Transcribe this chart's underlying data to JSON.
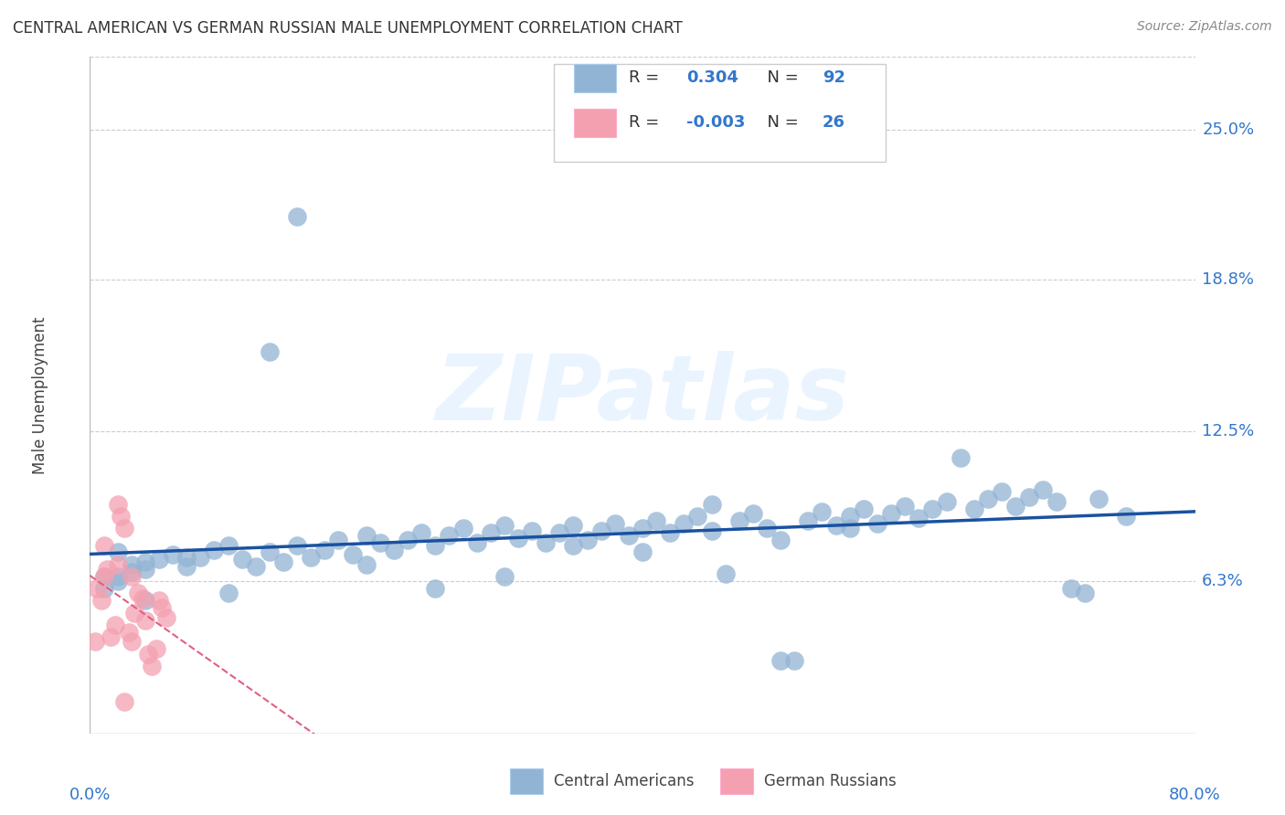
{
  "title": "CENTRAL AMERICAN VS GERMAN RUSSIAN MALE UNEMPLOYMENT CORRELATION CHART",
  "source": "Source: ZipAtlas.com",
  "ylabel": "Male Unemployment",
  "xmin": 0.0,
  "xmax": 0.8,
  "ymin": 0.0,
  "ymax": 0.28,
  "yticks": [
    0.063,
    0.125,
    0.188,
    0.25
  ],
  "ytick_labels": [
    "6.3%",
    "12.5%",
    "18.8%",
    "25.0%"
  ],
  "watermark": "ZIPatlas",
  "legend_r_blue": "0.304",
  "legend_n_blue": "92",
  "legend_r_pink": "-0.003",
  "legend_n_pink": "26",
  "blue_color": "#92b4d4",
  "pink_color": "#f4a0b0",
  "blue_line_color": "#1a52a0",
  "pink_line_color": "#e06080",
  "grid_color": "#cccccc",
  "background_color": "#ffffff",
  "blue_scatter_x": [
    0.02,
    0.03,
    0.01,
    0.04,
    0.05,
    0.02,
    0.03,
    0.04,
    0.06,
    0.07,
    0.08,
    0.09,
    0.1,
    0.11,
    0.12,
    0.13,
    0.14,
    0.15,
    0.16,
    0.17,
    0.18,
    0.19,
    0.2,
    0.21,
    0.22,
    0.23,
    0.24,
    0.25,
    0.26,
    0.27,
    0.28,
    0.29,
    0.3,
    0.31,
    0.32,
    0.33,
    0.34,
    0.35,
    0.36,
    0.37,
    0.38,
    0.39,
    0.4,
    0.41,
    0.42,
    0.43,
    0.44,
    0.45,
    0.46,
    0.47,
    0.48,
    0.49,
    0.5,
    0.51,
    0.52,
    0.53,
    0.54,
    0.55,
    0.56,
    0.57,
    0.58,
    0.59,
    0.6,
    0.61,
    0.62,
    0.63,
    0.64,
    0.65,
    0.66,
    0.67,
    0.68,
    0.69,
    0.7,
    0.71,
    0.72,
    0.73,
    0.01,
    0.02,
    0.04,
    0.07,
    0.1,
    0.13,
    0.15,
    0.2,
    0.25,
    0.3,
    0.35,
    0.4,
    0.45,
    0.5,
    0.55,
    0.75
  ],
  "blue_scatter_y": [
    0.075,
    0.07,
    0.065,
    0.068,
    0.072,
    0.063,
    0.067,
    0.071,
    0.074,
    0.069,
    0.073,
    0.076,
    0.078,
    0.072,
    0.069,
    0.075,
    0.071,
    0.078,
    0.073,
    0.076,
    0.08,
    0.074,
    0.082,
    0.079,
    0.076,
    0.08,
    0.083,
    0.078,
    0.082,
    0.085,
    0.079,
    0.083,
    0.086,
    0.081,
    0.084,
    0.079,
    0.083,
    0.086,
    0.08,
    0.084,
    0.087,
    0.082,
    0.085,
    0.088,
    0.083,
    0.087,
    0.09,
    0.084,
    0.066,
    0.088,
    0.091,
    0.085,
    0.03,
    0.03,
    0.088,
    0.092,
    0.086,
    0.09,
    0.093,
    0.087,
    0.091,
    0.094,
    0.089,
    0.093,
    0.096,
    0.114,
    0.093,
    0.097,
    0.1,
    0.094,
    0.098,
    0.101,
    0.096,
    0.06,
    0.058,
    0.097,
    0.06,
    0.065,
    0.055,
    0.073,
    0.058,
    0.158,
    0.214,
    0.07,
    0.06,
    0.065,
    0.078,
    0.075,
    0.095,
    0.08,
    0.085,
    0.09
  ],
  "pink_scatter_x": [
    0.005,
    0.008,
    0.01,
    0.012,
    0.015,
    0.018,
    0.02,
    0.022,
    0.025,
    0.028,
    0.03,
    0.032,
    0.035,
    0.038,
    0.04,
    0.042,
    0.045,
    0.048,
    0.05,
    0.052,
    0.055,
    0.01,
    0.02,
    0.03,
    0.004,
    0.025
  ],
  "pink_scatter_y": [
    0.06,
    0.055,
    0.065,
    0.068,
    0.04,
    0.045,
    0.095,
    0.09,
    0.085,
    0.042,
    0.038,
    0.05,
    0.058,
    0.056,
    0.047,
    0.033,
    0.028,
    0.035,
    0.055,
    0.052,
    0.048,
    0.078,
    0.07,
    0.065,
    0.038,
    0.013
  ]
}
